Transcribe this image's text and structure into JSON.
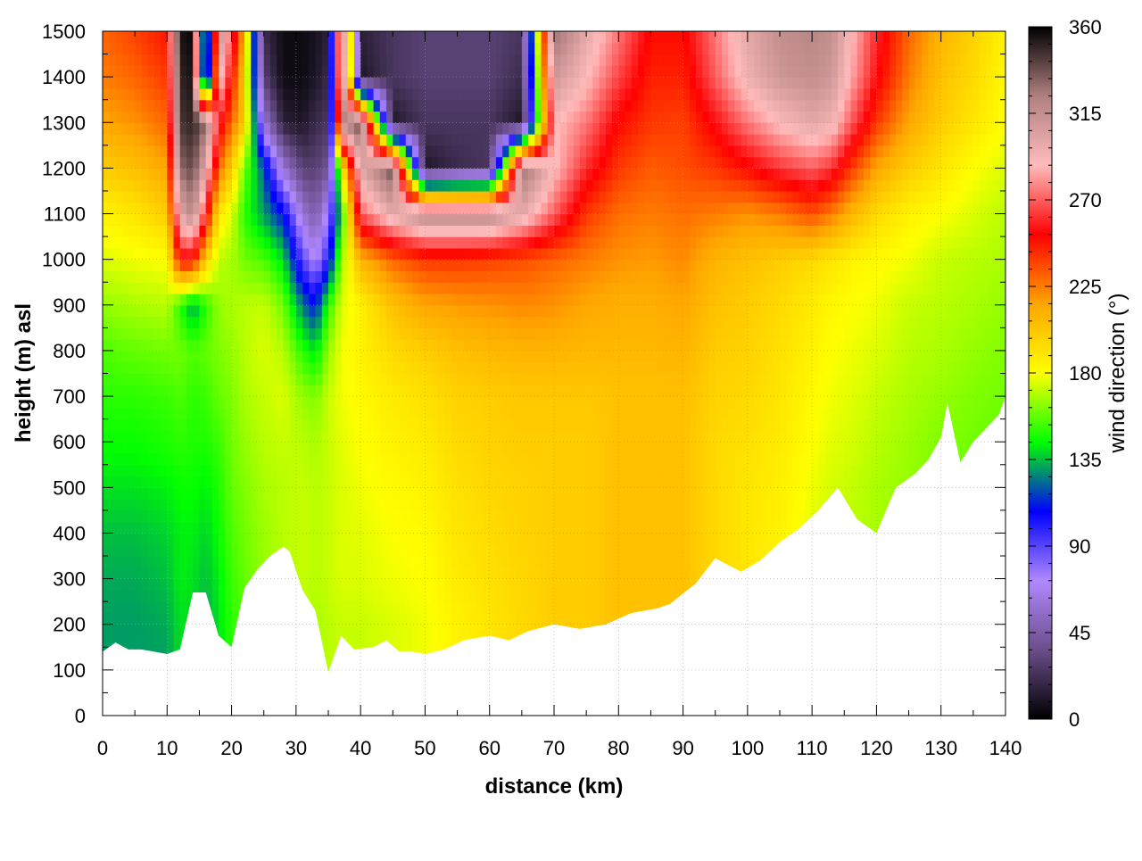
{
  "chart_data": {
    "type": "heatmap",
    "title": "",
    "xlabel": "distance (km)",
    "ylabel": "height (m) asl",
    "xlim": [
      0,
      140
    ],
    "ylim": [
      0,
      1500
    ],
    "x_ticks": [
      "0",
      "10",
      "20",
      "30",
      "40",
      "50",
      "60",
      "70",
      "80",
      "90",
      "100",
      "110",
      "120",
      "130",
      "140"
    ],
    "y_ticks": [
      "0",
      "100",
      "200",
      "300",
      "400",
      "500",
      "600",
      "700",
      "800",
      "900",
      "1000",
      "1100",
      "1200",
      "1300",
      "1400",
      "1500"
    ],
    "grid": true,
    "colorbar": {
      "label": "wind direction (°)",
      "range": [
        0,
        360
      ],
      "ticks": [
        "0",
        "45",
        "90",
        "135",
        "180",
        "225",
        "270",
        "315",
        "360"
      ],
      "colors": [
        "#000000",
        "#6a4e8a",
        "#b088ff",
        "#0000ff",
        "#00ff00",
        "#ffff00",
        "#ffa500",
        "#ff0000",
        "#ffbbbb",
        "#b08080",
        "#000000"
      ]
    },
    "terrain": {
      "distance_km": [
        0,
        2,
        4,
        6,
        8,
        10,
        12,
        14,
        16,
        18,
        20,
        22,
        24,
        26,
        28,
        29,
        31,
        33,
        35,
        37,
        39,
        42,
        44,
        46,
        48,
        50,
        53,
        56,
        60,
        63,
        66,
        70,
        74,
        78,
        82,
        86,
        88,
        92,
        95,
        99,
        102,
        105,
        108,
        111,
        114,
        117,
        120,
        123,
        126,
        128,
        130,
        131,
        133,
        135,
        137,
        139,
        140
      ],
      "height_m": [
        140,
        160,
        145,
        145,
        140,
        135,
        145,
        270,
        270,
        175,
        150,
        280,
        320,
        350,
        370,
        360,
        275,
        230,
        95,
        175,
        145,
        150,
        165,
        140,
        140,
        135,
        145,
        165,
        175,
        165,
        185,
        200,
        190,
        200,
        225,
        235,
        245,
        290,
        345,
        315,
        340,
        380,
        410,
        450,
        500,
        430,
        400,
        500,
        530,
        560,
        610,
        685,
        555,
        600,
        630,
        660,
        700
      ]
    },
    "wind_direction_deg": {
      "distance_km": [
        0,
        5,
        10,
        12,
        14,
        16,
        18,
        20,
        22,
        25,
        28,
        31,
        33,
        35,
        37,
        40,
        45,
        50,
        55,
        60,
        65,
        70,
        75,
        80,
        85,
        90,
        95,
        100,
        105,
        110,
        113,
        116,
        120,
        125,
        130,
        135,
        140
      ],
      "height_m": [
        100,
        200,
        300,
        400,
        500,
        600,
        700,
        800,
        900,
        1000,
        1100,
        1200,
        1300,
        1400,
        1500
      ],
      "values": [
        [
          130,
          130,
          130,
          140,
          135,
          130,
          140,
          150,
          155,
          165,
          170,
          170,
          168,
          170,
          172,
          172,
          175,
          178,
          185,
          190,
          195,
          200,
          200,
          205,
          205,
          205,
          195,
          190,
          185,
          175,
          172,
          170,
          168,
          165,
          160,
          160,
          158
        ],
        [
          130,
          130,
          132,
          140,
          138,
          132,
          140,
          150,
          155,
          165,
          170,
          170,
          168,
          170,
          172,
          172,
          175,
          178,
          185,
          190,
          195,
          200,
          200,
          205,
          205,
          205,
          195,
          190,
          185,
          175,
          172,
          170,
          168,
          165,
          160,
          160,
          158
        ],
        [
          132,
          132,
          135,
          142,
          140,
          135,
          142,
          152,
          158,
          165,
          170,
          172,
          170,
          172,
          175,
          175,
          178,
          180,
          188,
          192,
          196,
          200,
          200,
          205,
          205,
          205,
          195,
          190,
          185,
          175,
          172,
          170,
          168,
          165,
          160,
          160,
          158
        ],
        [
          135,
          135,
          138,
          142,
          142,
          138,
          145,
          155,
          160,
          166,
          170,
          172,
          170,
          172,
          175,
          176,
          180,
          182,
          190,
          194,
          198,
          200,
          200,
          205,
          205,
          205,
          195,
          190,
          185,
          176,
          172,
          170,
          168,
          165,
          160,
          160,
          158
        ],
        [
          140,
          140,
          142,
          145,
          145,
          142,
          148,
          158,
          162,
          168,
          170,
          172,
          170,
          172,
          175,
          178,
          182,
          185,
          192,
          196,
          198,
          200,
          200,
          205,
          205,
          205,
          195,
          190,
          186,
          178,
          174,
          172,
          168,
          165,
          160,
          160,
          158
        ],
        [
          145,
          145,
          148,
          150,
          148,
          148,
          152,
          160,
          165,
          170,
          172,
          170,
          168,
          172,
          176,
          180,
          185,
          188,
          195,
          198,
          200,
          200,
          200,
          205,
          205,
          205,
          195,
          192,
          188,
          180,
          176,
          174,
          170,
          166,
          162,
          160,
          158
        ],
        [
          150,
          150,
          152,
          155,
          150,
          152,
          158,
          162,
          168,
          172,
          175,
          165,
          162,
          172,
          178,
          182,
          188,
          192,
          198,
          200,
          202,
          202,
          202,
          205,
          205,
          205,
          198,
          195,
          190,
          182,
          178,
          176,
          172,
          168,
          165,
          162,
          160
        ],
        [
          155,
          158,
          160,
          160,
          155,
          158,
          162,
          165,
          170,
          175,
          170,
          150,
          140,
          165,
          178,
          185,
          195,
          200,
          205,
          208,
          210,
          210,
          208,
          208,
          208,
          210,
          200,
          198,
          192,
          185,
          180,
          178,
          175,
          170,
          168,
          165,
          162
        ],
        [
          165,
          168,
          170,
          150,
          130,
          150,
          165,
          168,
          170,
          172,
          160,
          125,
          110,
          150,
          175,
          185,
          205,
          215,
          218,
          220,
          222,
          220,
          215,
          212,
          212,
          215,
          205,
          200,
          195,
          188,
          183,
          180,
          178,
          172,
          170,
          168,
          165
        ],
        [
          175,
          178,
          180,
          250,
          250,
          200,
          170,
          168,
          160,
          155,
          140,
          90,
          70,
          100,
          165,
          210,
          230,
          240,
          240,
          238,
          235,
          230,
          225,
          220,
          218,
          222,
          210,
          205,
          200,
          195,
          190,
          185,
          182,
          178,
          172,
          170,
          168
        ],
        [
          185,
          190,
          200,
          300,
          320,
          260,
          190,
          175,
          150,
          130,
          110,
          60,
          45,
          75,
          140,
          270,
          300,
          320,
          320,
          320,
          300,
          270,
          240,
          228,
          225,
          228,
          225,
          220,
          225,
          235,
          225,
          210,
          195,
          185,
          180,
          175,
          170
        ],
        [
          200,
          205,
          215,
          330,
          340,
          300,
          230,
          200,
          160,
          120,
          60,
          30,
          30,
          40,
          180,
          300,
          340,
          10,
          20,
          25,
          330,
          290,
          260,
          240,
          232,
          235,
          240,
          250,
          262,
          270,
          262,
          240,
          215,
          200,
          190,
          180,
          175
        ],
        [
          215,
          220,
          230,
          345,
          350,
          330,
          260,
          230,
          200,
          60,
          15,
          10,
          20,
          25,
          320,
          340,
          10,
          25,
          25,
          25,
          10,
          290,
          275,
          250,
          240,
          238,
          255,
          275,
          290,
          300,
          295,
          270,
          240,
          215,
          200,
          190,
          180
        ],
        [
          225,
          230,
          240,
          350,
          355,
          40,
          300,
          250,
          200,
          30,
          5,
          5,
          10,
          20,
          350,
          10,
          25,
          30,
          30,
          30,
          20,
          310,
          290,
          265,
          245,
          245,
          270,
          295,
          310,
          315,
          310,
          285,
          255,
          225,
          205,
          195,
          182
        ],
        [
          230,
          238,
          248,
          355,
          358,
          45,
          320,
          270,
          210,
          20,
          5,
          5,
          8,
          15,
          355,
          15,
          25,
          30,
          30,
          30,
          25,
          330,
          300,
          275,
          250,
          250,
          275,
          300,
          315,
          320,
          315,
          290,
          260,
          230,
          210,
          198,
          185
        ]
      ]
    }
  }
}
